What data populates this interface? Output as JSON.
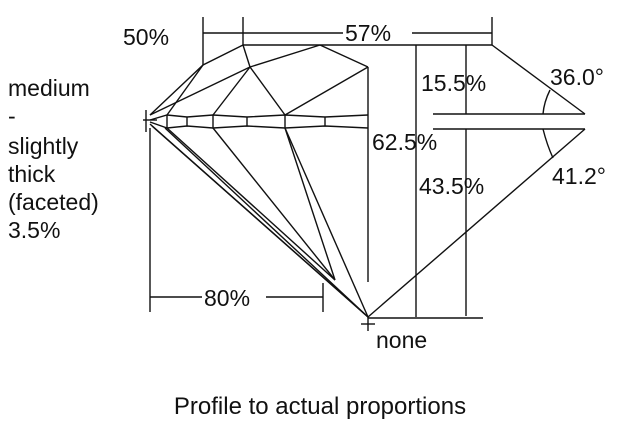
{
  "labels": {
    "crown_star_ratio": "50%",
    "table": "57%",
    "girdle": [
      "medium",
      "-",
      "slightly",
      "thick",
      "(faceted)",
      "3.5%"
    ],
    "crown_height": "15.5%",
    "crown_angle": "36.0°",
    "total_depth": "62.5%",
    "pavilion_depth": "43.5%",
    "pavilion_angle": "41.2°",
    "lower_half_ratio": "80%",
    "culet": "none"
  },
  "caption": "Profile to actual proportions"
}
